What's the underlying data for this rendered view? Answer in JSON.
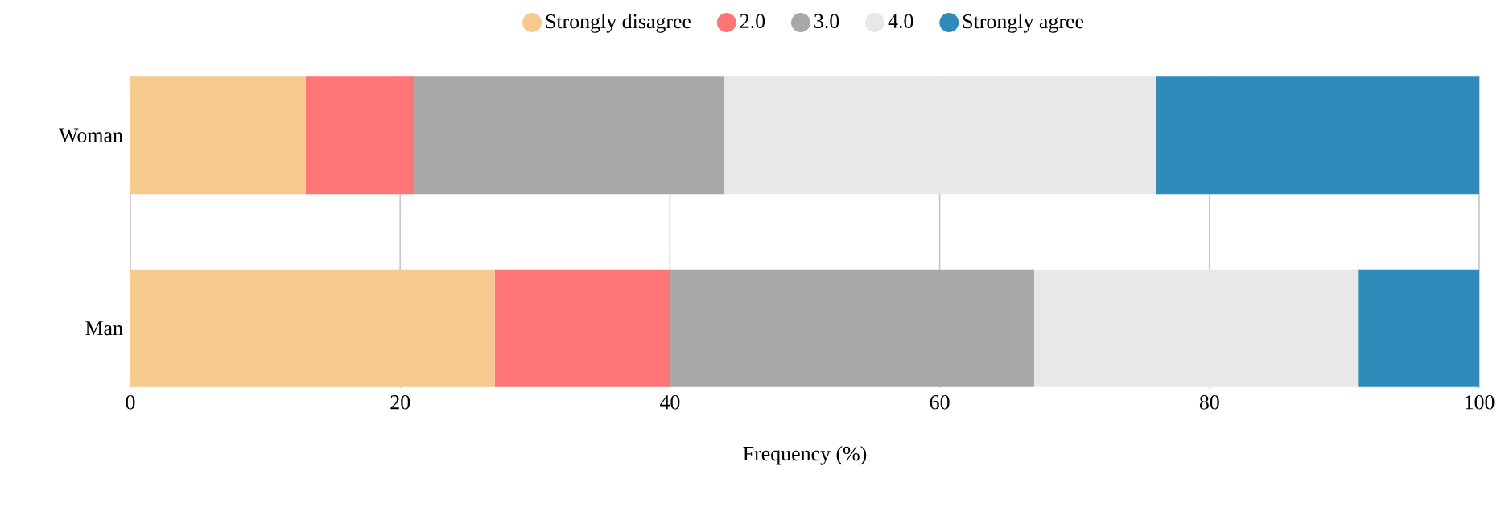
{
  "chart_data": {
    "type": "bar",
    "orientation": "horizontal",
    "stacked": true,
    "categories": [
      "Woman",
      "Man"
    ],
    "xlabel": "Frequency (%)",
    "xlim": [
      0,
      100
    ],
    "xticks": [
      0,
      20,
      40,
      60,
      80,
      100
    ],
    "grid": "x",
    "legend": "top",
    "series": [
      {
        "name": "Strongly disagree",
        "color": "#f6c98f",
        "values": [
          13,
          27
        ]
      },
      {
        "name": "2.0",
        "color": "#fd7575",
        "values": [
          8,
          13
        ]
      },
      {
        "name": "3.0",
        "color": "#a8a8a8",
        "values": [
          23,
          27
        ]
      },
      {
        "name": "4.0",
        "color": "#e8e8e8",
        "values": [
          32,
          24
        ]
      },
      {
        "name": "Strongly agree",
        "color": "#2e8bba",
        "values": [
          24,
          9
        ]
      }
    ]
  }
}
